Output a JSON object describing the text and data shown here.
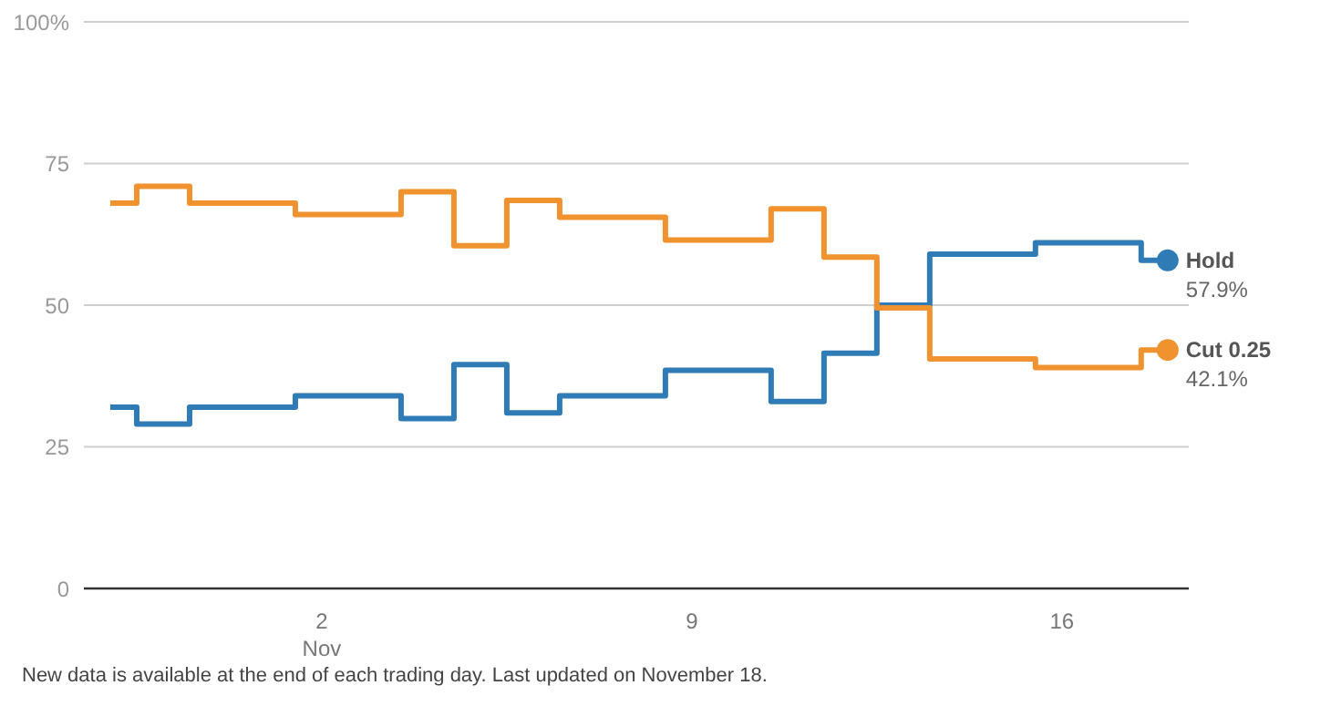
{
  "chart_data": {
    "type": "step",
    "x": [
      -2,
      -1.5,
      -0.5,
      1.5,
      3.5,
      4.5,
      5.5,
      6.5,
      8.5,
      10.5,
      11.5,
      12.5,
      13.5,
      15.5,
      17.5,
      18
    ],
    "series": [
      {
        "name": "Hold",
        "color": "#2e7bb6",
        "values": [
          32,
          29,
          32,
          34,
          30,
          39.5,
          31,
          34,
          38.5,
          33,
          41.5,
          50,
          59,
          61,
          57.9,
          57.9
        ],
        "value_labels": [
          null,
          null,
          null,
          null,
          null,
          null,
          null,
          null,
          null,
          null,
          null,
          null,
          null,
          null,
          null,
          "57.9%"
        ]
      },
      {
        "name": "Cut 0.25",
        "color": "#f0922e",
        "values": [
          68,
          71,
          68,
          66,
          70,
          60.5,
          68.5,
          65.5,
          61.5,
          67,
          58.5,
          49.5,
          40.5,
          39,
          42.1,
          42.1
        ],
        "value_labels": [
          null,
          null,
          null,
          null,
          null,
          null,
          null,
          null,
          null,
          null,
          null,
          null,
          null,
          null,
          null,
          "42.1%"
        ]
      }
    ],
    "xlim": [
      -2.5,
      18.4
    ],
    "xticks": [
      {
        "value": 2,
        "label": "2\nNov"
      },
      9,
      16
    ],
    "ylim": [
      0,
      100
    ],
    "yticks": [
      0,
      25,
      50,
      75,
      {
        "value": 100,
        "label": "100%"
      }
    ],
    "grid": "y",
    "annotations": [
      "New data is available at the end of each trading day. Last updated on November 18."
    ]
  }
}
